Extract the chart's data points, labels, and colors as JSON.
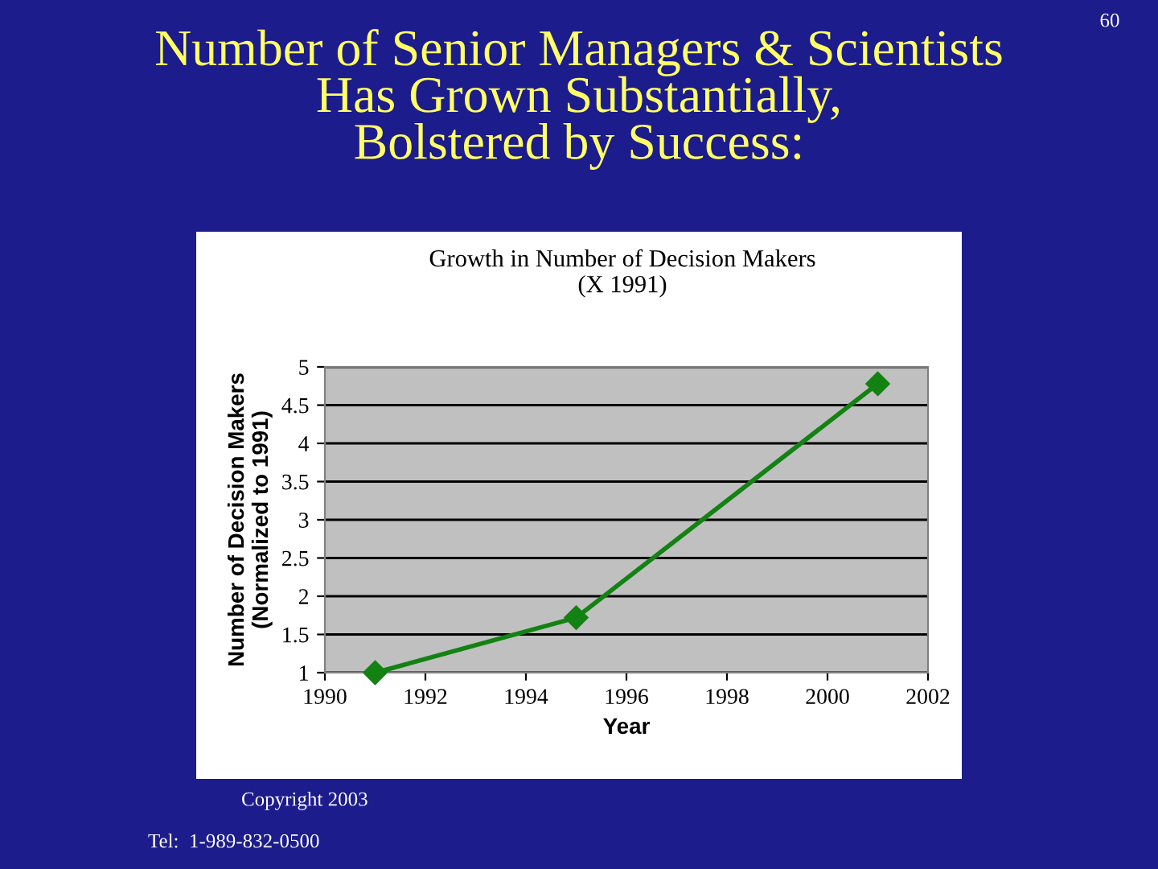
{
  "chart_data": {
    "type": "line",
    "title": "Number of Senior Managers & Scientists\nHas Grown Substantially,\nBolstered by Success:",
    "subtitle": "Growth in Number of Decision Makers\n(X 1991)",
    "xlabel": "Year",
    "ylabel": "Number of Decision Makers\n(Normalized to 1991)",
    "x": [
      1991,
      1995,
      2001
    ],
    "series": [
      {
        "color": "#138213",
        "values": [
          1,
          1.72,
          4.78
        ]
      }
    ],
    "marker": "diamond",
    "line_style": "solid",
    "xlim": [
      1990,
      2002
    ],
    "xticks": [
      1990,
      1992,
      1994,
      1996,
      1998,
      2000,
      2002
    ],
    "ylim": [
      1,
      5
    ],
    "yticks": [
      1,
      1.5,
      2,
      2.5,
      3,
      3.5,
      4,
      4.5,
      5
    ],
    "grid": "y",
    "legend": false,
    "annotations": [
      "60",
      "Copyright 2003",
      "Tel:  1-989-832-0500"
    ]
  }
}
